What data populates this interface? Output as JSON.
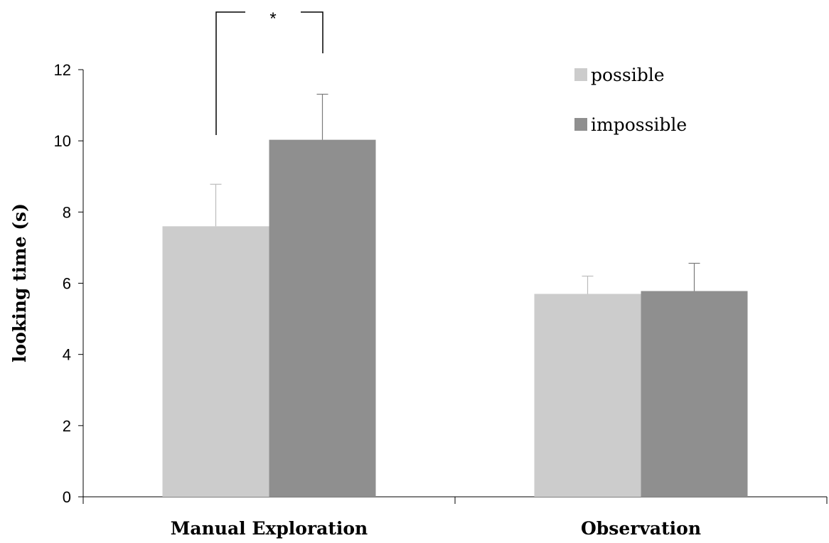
{
  "chart_data": {
    "type": "bar",
    "categories": [
      "Manual Exploration",
      "Observation"
    ],
    "series": [
      {
        "name": "possible",
        "values": [
          7.6,
          5.7
        ],
        "errors": [
          1.18,
          0.5
        ],
        "color": "#cccccc"
      },
      {
        "name": "impossible",
        "values": [
          10.03,
          5.78
        ],
        "errors": [
          1.28,
          0.78
        ],
        "color": "#8f8f8f"
      }
    ],
    "xlabel": "",
    "ylabel": "looking time (s)",
    "ylim": [
      0,
      12
    ],
    "yticks": [
      "0",
      "2",
      "4",
      "6",
      "8",
      "10",
      "12"
    ],
    "grid": false,
    "legend_position": "top-right",
    "annotations": [
      {
        "text": "*",
        "type": "significance-bracket",
        "category": "Manual Exploration"
      }
    ]
  }
}
